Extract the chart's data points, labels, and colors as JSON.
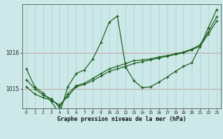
{
  "xlabel": "Graphe pression niveau de la mer (hPa)",
  "bg_color": "#cce8e8",
  "grid_color_h": "#c0a8a8",
  "grid_color_v": "#b8d8d8",
  "line_color": "#1a5c1a",
  "hours": [
    0,
    1,
    2,
    3,
    4,
    5,
    6,
    7,
    8,
    9,
    10,
    11,
    12,
    13,
    14,
    15,
    16,
    17,
    18,
    19,
    20,
    21,
    22,
    23
  ],
  "line1": [
    1015.55,
    1015.05,
    1014.88,
    1014.65,
    1014.3,
    1015.05,
    1015.42,
    1015.52,
    1015.82,
    1016.28,
    1016.85,
    1017.02,
    1015.6,
    1015.22,
    1015.03,
    1015.05,
    1015.18,
    1015.32,
    1015.48,
    1015.62,
    1015.72,
    1016.18,
    1016.7,
    1017.2
  ],
  "line2": [
    1015.05,
    1014.85,
    1014.75,
    1014.68,
    1014.55,
    1014.78,
    1015.05,
    1015.12,
    1015.22,
    1015.35,
    1015.48,
    1015.55,
    1015.62,
    1015.7,
    1015.75,
    1015.8,
    1015.85,
    1015.9,
    1015.95,
    1016.0,
    1016.08,
    1016.18,
    1016.52,
    1016.88
  ],
  "line3": [
    1015.25,
    1015.0,
    1014.82,
    1014.72,
    1014.48,
    1014.85,
    1015.08,
    1015.15,
    1015.28,
    1015.42,
    1015.55,
    1015.62,
    1015.7,
    1015.78,
    1015.8,
    1015.83,
    1015.88,
    1015.92,
    1015.97,
    1016.02,
    1016.1,
    1016.22,
    1016.58,
    1017.0
  ],
  "ylim": [
    1014.45,
    1017.35
  ],
  "yticks": [
    1015,
    1016
  ],
  "xticks": [
    0,
    1,
    2,
    3,
    4,
    5,
    6,
    7,
    8,
    9,
    10,
    11,
    12,
    13,
    14,
    15,
    16,
    17,
    18,
    19,
    20,
    21,
    22,
    23
  ]
}
